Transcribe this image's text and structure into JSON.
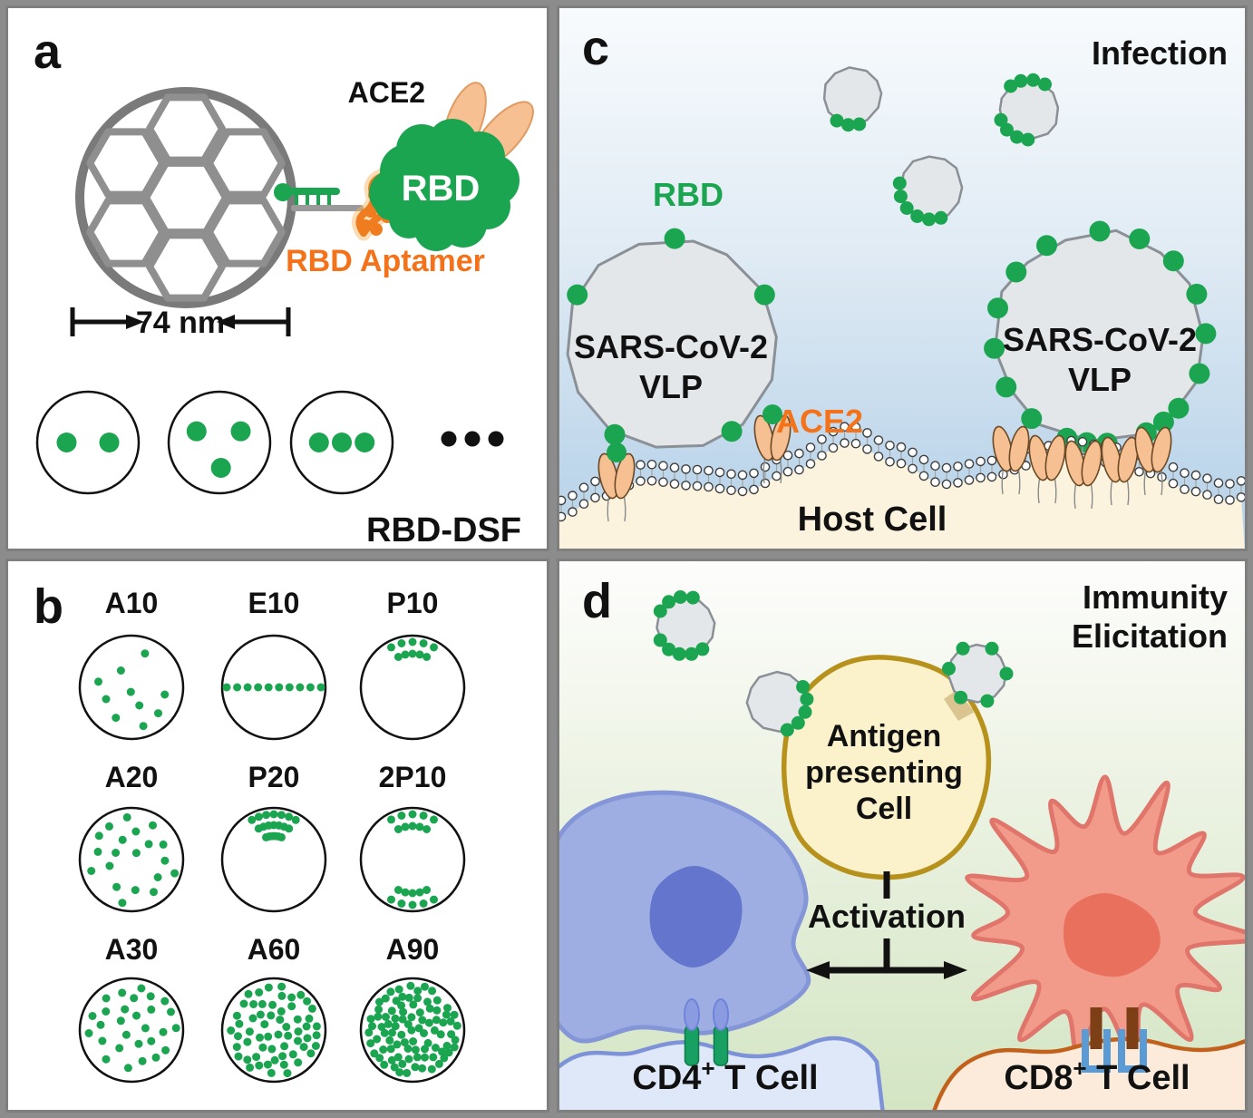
{
  "palette": {
    "green": "#1CA551",
    "orange": "#F4731A",
    "peach_fill": "#F6C093",
    "peach_stroke": "#6B4A26",
    "cage_gray": "#8F8F8F",
    "vlp_fill": "#E4E7EA",
    "vlp_stroke": "#8A9096",
    "host_cream": "#FBF3DE",
    "membrane_bead": "#3F3F3F",
    "apc_fill": "#FBF1CB",
    "apc_stroke": "#B6911B",
    "blue_cell_fill": "#9FAEE2",
    "blue_cell_stroke": "#8495D8",
    "blue_nucleus": "#6375CC",
    "red_cell_fill": "#F29B8B",
    "red_cell_stroke": "#E0756B",
    "red_nucleus": "#E8705C",
    "cd4_membrane_fill": "#DFE8F8",
    "cd4_membrane_stroke": "#7D92D8",
    "cd8_membrane_fill": "#FCEBDA",
    "cd8_membrane_stroke": "#C2611C",
    "cd4_receptor_green": "#17A062",
    "cd4_receptor_blue": "#8B9BE2",
    "cd8_receptor_brown": "#7D3F16",
    "cd8_receptor_blue": "#5B9BD5",
    "black": "#111111"
  },
  "panel_a": {
    "letter": "a",
    "ace2_label": "ACE2",
    "rbd_label": "RBD",
    "aptamer_label": "RBD Aptamer",
    "size_label": "74 nm",
    "dsf_label": "RBD-DSF",
    "dsf_circles": [
      {
        "dots": [
          [
            -0.42,
            0
          ],
          [
            0.42,
            0
          ]
        ]
      },
      {
        "dots": [
          [
            -0.45,
            -0.22
          ],
          [
            0.42,
            -0.22
          ],
          [
            0.03,
            0.5
          ]
        ]
      },
      {
        "dots": [
          [
            -0.45,
            0
          ],
          [
            0,
            0
          ],
          [
            0.45,
            0
          ]
        ]
      }
    ]
  },
  "panel_b": {
    "letter": "b",
    "particles": [
      {
        "label": "A10",
        "type": "random",
        "count": 10
      },
      {
        "label": "E10",
        "type": "equator",
        "count": 10
      },
      {
        "label": "P10",
        "type": "pole",
        "count": 10
      },
      {
        "label": "A20",
        "type": "random",
        "count": 20
      },
      {
        "label": "P20",
        "type": "pole",
        "count": 20
      },
      {
        "label": "2P10",
        "type": "twopole",
        "count": 20
      },
      {
        "label": "A30",
        "type": "random",
        "count": 30
      },
      {
        "label": "A60",
        "type": "random",
        "count": 60
      },
      {
        "label": "A90",
        "type": "random",
        "count": 90
      }
    ]
  },
  "panel_c": {
    "letter": "c",
    "title": "Infection",
    "rbd_label": "RBD",
    "ace2_label": "ACE2",
    "vlp_line1": "SARS-CoV-2",
    "vlp_line2": "VLP",
    "host_label": "Host Cell"
  },
  "panel_d": {
    "letter": "d",
    "title_line1": "Immunity",
    "title_line2": "Elicitation",
    "apc_line1": "Antigen",
    "apc_line2": "presenting",
    "apc_line3": "Cell",
    "activation_label": "Activation",
    "cd4": {
      "base": "CD4",
      "sup": "+",
      "rest": " T Cell"
    },
    "cd8": {
      "base": "CD8",
      "sup": "+",
      "rest": " T Cell"
    }
  }
}
